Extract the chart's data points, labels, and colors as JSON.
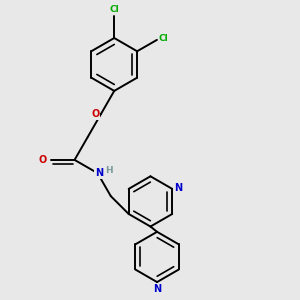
{
  "background_color": "#e8e8e8",
  "atom_colors": {
    "C": "#000000",
    "N": "#0000cc",
    "O": "#cc0000",
    "Cl": "#00aa00",
    "H": "#7a9a9a"
  },
  "line_color": "#000000",
  "line_width": 1.4,
  "figsize": [
    3.0,
    3.0
  ],
  "dpi": 100
}
